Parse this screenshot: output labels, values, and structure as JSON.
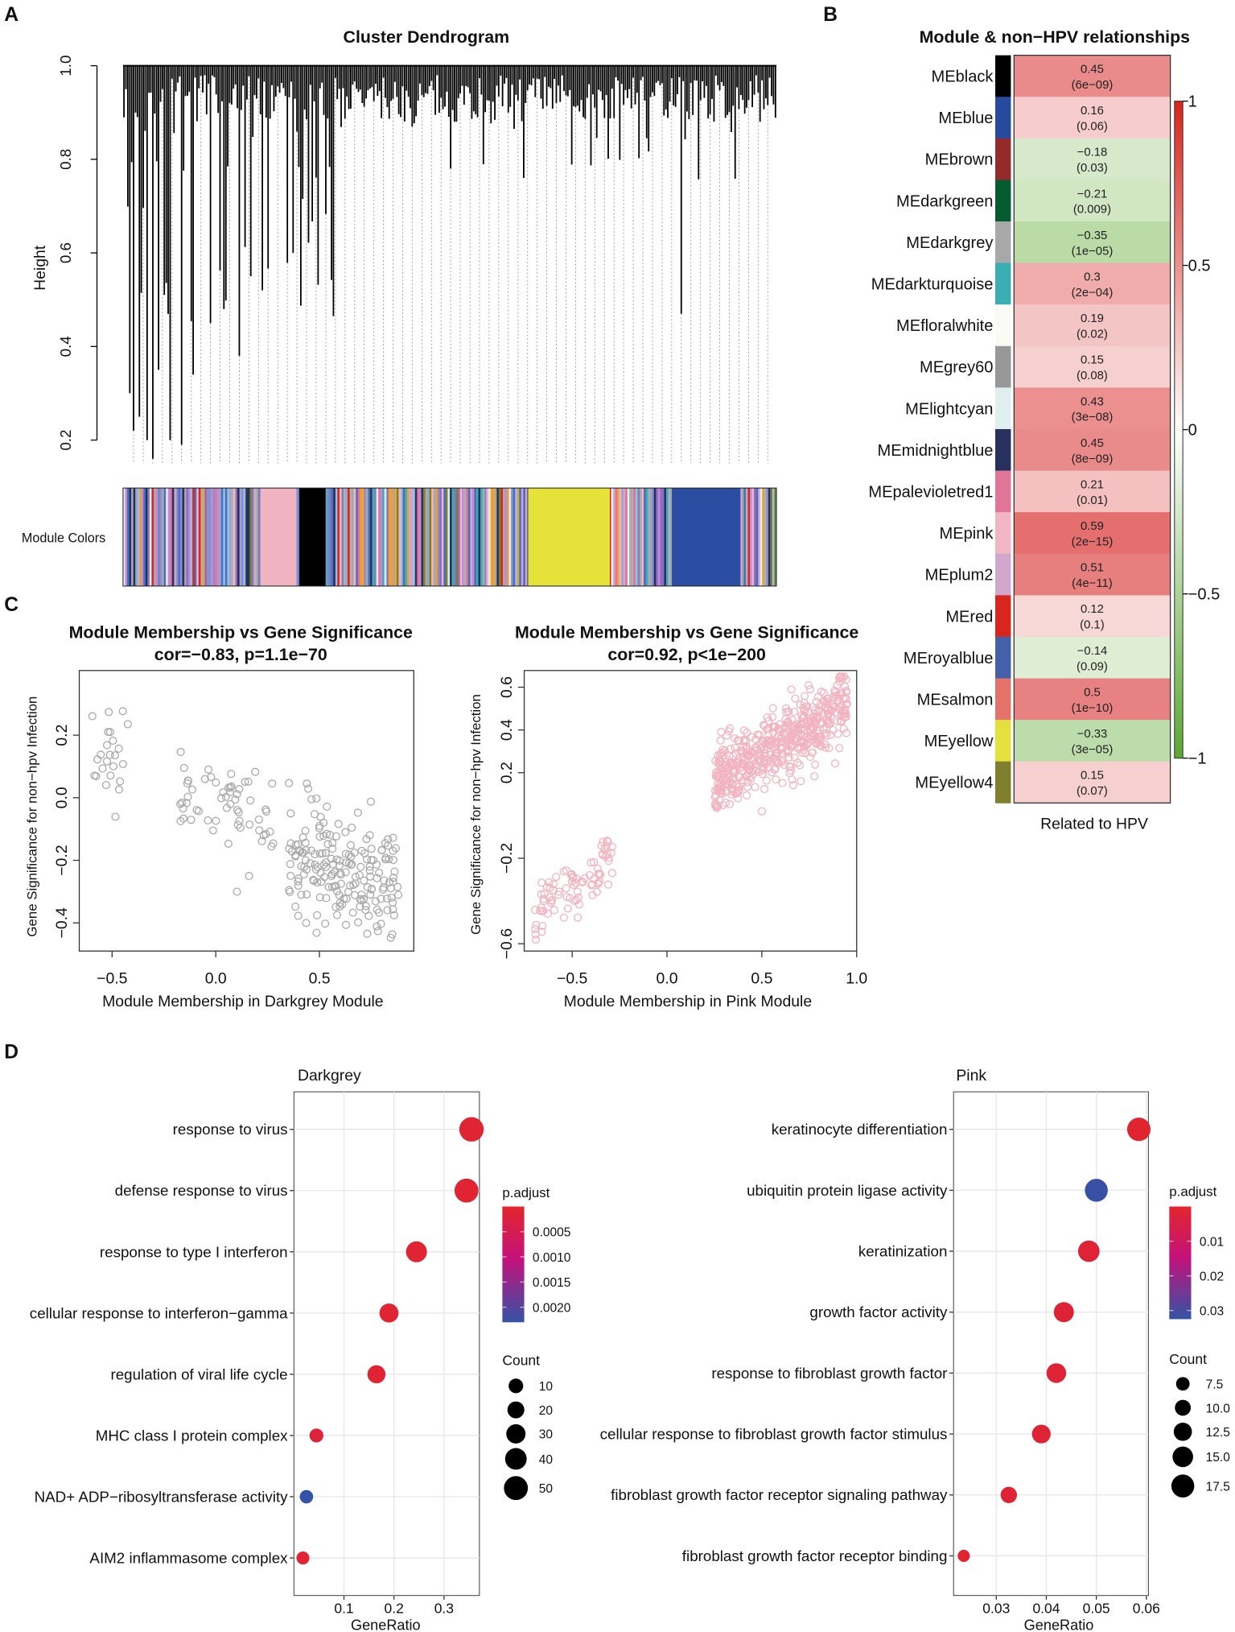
{
  "panels": {
    "a": "A",
    "b": "B",
    "c": "C",
    "d": "D"
  },
  "chart_data": [
    {
      "type": "dendrogram",
      "title": "Cluster Dendrogram",
      "ylabel": "Height",
      "ylim": [
        0.15,
        1.0
      ],
      "yticks": [
        "0.2",
        "0.4",
        "0.6",
        "0.8",
        "1.0"
      ],
      "yticks_values": [
        0.2,
        0.4,
        0.6,
        0.8,
        1.0
      ],
      "color_bar_label": "Module Colors",
      "module_blocks": [
        {
          "color": "#000000",
          "from": 0.27,
          "to": 0.31
        },
        {
          "color": "#e6e23a",
          "from": 0.62,
          "to": 0.745
        },
        {
          "color": "#2b4ea3",
          "from": 0.84,
          "to": 0.945
        },
        {
          "color": "#f0b3c1",
          "from": 0.21,
          "to": 0.265
        }
      ]
    },
    {
      "type": "heatmap",
      "title": "Module & non−HPV relationships",
      "xlabel": "Related to HPV",
      "colorbar_ticks": [
        "1",
        "0.5",
        "0",
        "−0.5",
        "−1"
      ],
      "colorbar_values": [
        1,
        0.5,
        0,
        -0.5,
        -1
      ],
      "rows": [
        {
          "module": "MEblack",
          "color": "#000000",
          "cor": 0.45,
          "cor_label": "0.45",
          "p": "(6e−09)"
        },
        {
          "module": "MEblue",
          "color": "#274a9c",
          "cor": 0.16,
          "cor_label": "0.16",
          "p": "(0.06)"
        },
        {
          "module": "MEbrown",
          "color": "#952a2a",
          "cor": -0.18,
          "cor_label": "−0.18",
          "p": "(0.03)"
        },
        {
          "module": "MEdarkgreen",
          "color": "#055c30",
          "cor": -0.21,
          "cor_label": "−0.21",
          "p": "(0.009)"
        },
        {
          "module": "MEdarkgrey",
          "color": "#a8a8a8",
          "cor": -0.35,
          "cor_label": "−0.35",
          "p": "(1e−05)"
        },
        {
          "module": "MEdarkturquoise",
          "color": "#3aafb3",
          "cor": 0.3,
          "cor_label": "0.3",
          "p": "(2e−04)"
        },
        {
          "module": "MEfloralwhite",
          "color": "#fcfaf4",
          "cor": 0.19,
          "cor_label": "0.19",
          "p": "(0.02)"
        },
        {
          "module": "MEgrey60",
          "color": "#989898",
          "cor": 0.15,
          "cor_label": "0.15",
          "p": "(0.08)"
        },
        {
          "module": "MElightcyan",
          "color": "#dfeeee",
          "cor": 0.43,
          "cor_label": "0.43",
          "p": "(3e−08)"
        },
        {
          "module": "MEmidnightblue",
          "color": "#28305e",
          "cor": 0.45,
          "cor_label": "0.45",
          "p": "(8e−09)"
        },
        {
          "module": "MEpalevioletred1",
          "color": "#e07597",
          "cor": 0.21,
          "cor_label": "0.21",
          "p": "(0.01)"
        },
        {
          "module": "MEpink",
          "color": "#f1b6c4",
          "cor": 0.59,
          "cor_label": "0.59",
          "p": "(2e−15)"
        },
        {
          "module": "MEplum2",
          "color": "#d1a7cb",
          "cor": 0.51,
          "cor_label": "0.51",
          "p": "(4e−11)"
        },
        {
          "module": "MEred",
          "color": "#d8261f",
          "cor": 0.12,
          "cor_label": "0.12",
          "p": "(0.1)"
        },
        {
          "module": "MEroyalblue",
          "color": "#4460a8",
          "cor": -0.14,
          "cor_label": "−0.14",
          "p": "(0.09)"
        },
        {
          "module": "MEsalmon",
          "color": "#e2726a",
          "cor": 0.5,
          "cor_label": "0.5",
          "p": "(1e−10)"
        },
        {
          "module": "MEyellow",
          "color": "#e4e03e",
          "cor": -0.33,
          "cor_label": "−0.33",
          "p": "(3e−05)"
        },
        {
          "module": "MEyellow4",
          "color": "#7f7f2e",
          "cor": 0.15,
          "cor_label": "0.15",
          "p": "(0.07)"
        }
      ]
    },
    {
      "type": "scatter",
      "title": "Module Membership vs Gene Significance",
      "subtitle": "cor=−0.83, p=1.1e−70",
      "xlabel": "Module Membership in Darkgrey Module",
      "ylabel": "Gene Significance for non−hpv Infection",
      "xlim": [
        -0.65,
        0.9
      ],
      "ylim": [
        -0.47,
        0.38
      ],
      "xticks": [
        "−0.5",
        "0.0",
        "0.5"
      ],
      "xticks_values": [
        -0.5,
        0,
        0.5
      ],
      "yticks": [
        "0.2",
        "0.0",
        "−0.2",
        "−0.4"
      ],
      "yticks_values": [
        0.2,
        0,
        -0.2,
        -0.4
      ],
      "point_color": "#a9a9a9",
      "clusters": [
        {
          "n": 24,
          "x": [
            -0.6,
            -0.42
          ],
          "y_center": 0.15,
          "y_sd": 0.09,
          "slope": 0
        },
        {
          "n": 60,
          "x": [
            -0.2,
            0.28
          ],
          "y_center": -0.03,
          "y_sd": 0.07,
          "slope": -0.1
        },
        {
          "n": 190,
          "x": [
            0.35,
            0.88
          ],
          "y_center": -0.24,
          "y_sd": 0.09,
          "slope": -0.25
        }
      ]
    },
    {
      "type": "scatter",
      "title": "Module Membership vs Gene Significance",
      "subtitle": "cor=0.92, p<1e−200",
      "xlabel": "Module Membership in Pink Module",
      "ylabel": "Gene Significance for non−hpv Infection",
      "xlim": [
        -0.75,
        1.0
      ],
      "ylim": [
        -0.6,
        0.65
      ],
      "xticks": [
        "−0.5",
        "0.0",
        "0.5",
        "1.0"
      ],
      "xticks_values": [
        -0.5,
        0,
        0.5,
        1.0
      ],
      "yticks": [
        "0.6",
        "0.4",
        "0.2",
        "−0.2",
        "−0.6"
      ],
      "yticks_values": [
        0.6,
        0.4,
        0.2,
        -0.2,
        -0.6
      ],
      "point_color": "#f2b3c0",
      "clusters": [
        {
          "n": 85,
          "x": [
            -0.7,
            -0.27
          ],
          "y_center": -0.33,
          "y_sd": 0.07,
          "slope": 0.6
        },
        {
          "n": 520,
          "x": [
            0.25,
            0.95
          ],
          "y_center": 0.33,
          "y_sd": 0.08,
          "slope": 0.5
        }
      ]
    },
    {
      "type": "scatter",
      "subtype": "dotplot",
      "title": "Darkgrey",
      "xlabel": "GeneRatio",
      "xlim": [
        0,
        0.37
      ],
      "xticks": [
        "0.1",
        "0.2",
        "0.3"
      ],
      "xticks_values": [
        0.1,
        0.2,
        0.3
      ],
      "terms": [
        {
          "term": "response to virus",
          "gene_ratio": 0.355,
          "count": 52,
          "p_adjust": 0.0001
        },
        {
          "term": "defense response to virus",
          "gene_ratio": 0.345,
          "count": 50,
          "p_adjust": 0.0001
        },
        {
          "term": "response to type I interferon",
          "gene_ratio": 0.245,
          "count": 37,
          "p_adjust": 0.0001
        },
        {
          "term": "cellular response to interferon−gamma",
          "gene_ratio": 0.19,
          "count": 29,
          "p_adjust": 0.0001
        },
        {
          "term": "regulation of viral life cycle",
          "gene_ratio": 0.165,
          "count": 25,
          "p_adjust": 0.0001
        },
        {
          "term": "MHC class I protein complex",
          "gene_ratio": 0.045,
          "count": 7,
          "p_adjust": 0.0002
        },
        {
          "term": "NAD+ ADP−ribosyltransferase activity",
          "gene_ratio": 0.025,
          "count": 5,
          "p_adjust": 0.0023
        },
        {
          "term": "AIM2 inflammasome complex",
          "gene_ratio": 0.018,
          "count": 3,
          "p_adjust": 0.0001
        }
      ],
      "color_legend": {
        "title": "p.adjust",
        "ticks": [
          "0.0005",
          "0.0010",
          "0.0015",
          "0.0020"
        ],
        "values": [
          0.0005,
          0.001,
          0.0015,
          0.002
        ],
        "range": [
          0.0,
          0.0023
        ]
      },
      "size_legend": {
        "title": "Count",
        "labels": [
          "10",
          "20",
          "30",
          "40",
          "50"
        ],
        "values": [
          10,
          20,
          30,
          40,
          50
        ]
      }
    },
    {
      "type": "scatter",
      "subtype": "dotplot",
      "title": "Pink",
      "xlabel": "GeneRatio",
      "xlim": [
        0.0215,
        0.0605
      ],
      "xticks": [
        "0.03",
        "0.04",
        "0.05",
        "0.06"
      ],
      "xticks_values": [
        0.03,
        0.04,
        0.05,
        0.06
      ],
      "terms": [
        {
          "term": "keratinocyte differentiation",
          "gene_ratio": 0.0585,
          "count": 18,
          "p_adjust": 0.001
        },
        {
          "term": "ubiquitin protein ligase activity",
          "gene_ratio": 0.05,
          "count": 17.5,
          "p_adjust": 0.032
        },
        {
          "term": "keratinization",
          "gene_ratio": 0.0485,
          "count": 16,
          "p_adjust": 0.002
        },
        {
          "term": "growth factor activity",
          "gene_ratio": 0.0435,
          "count": 14.5,
          "p_adjust": 0.002
        },
        {
          "term": "response to fibroblast growth factor",
          "gene_ratio": 0.042,
          "count": 14,
          "p_adjust": 0.002
        },
        {
          "term": "cellular response to fibroblast growth factor stimulus",
          "gene_ratio": 0.039,
          "count": 13,
          "p_adjust": 0.002
        },
        {
          "term": "fibroblast growth factor receptor signaling pathway",
          "gene_ratio": 0.0325,
          "count": 10.5,
          "p_adjust": 0.002
        },
        {
          "term": "fibroblast growth factor receptor binding",
          "gene_ratio": 0.0235,
          "count": 6,
          "p_adjust": 0.001
        }
      ],
      "color_legend": {
        "title": "p.adjust",
        "ticks": [
          "0.01",
          "0.02",
          "0.03"
        ],
        "values": [
          0.01,
          0.02,
          0.03
        ],
        "range": [
          0.0,
          0.0325
        ]
      },
      "size_legend": {
        "title": "Count",
        "labels": [
          "7.5",
          "10.0",
          "12.5",
          "15.0",
          "17.5"
        ],
        "values": [
          7.5,
          10,
          12.5,
          15,
          17.5
        ]
      }
    }
  ]
}
